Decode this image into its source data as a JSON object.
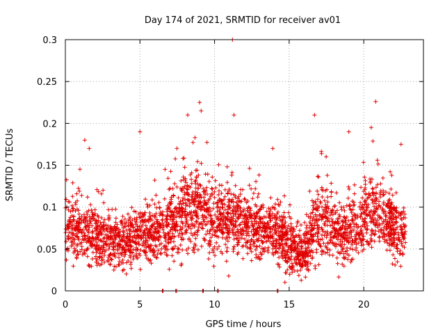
{
  "chart_data": {
    "type": "scatter",
    "title": "Day 174 of 2021, SRMTID for receiver av01",
    "xlabel": "GPS time / hours",
    "ylabel": "SRMTID / TECUs",
    "xlim": [
      0,
      24
    ],
    "ylim": [
      0,
      0.3
    ],
    "xticks": [
      0,
      5,
      10,
      15,
      20
    ],
    "xtick_labels": [
      "0",
      "5",
      "10",
      "15",
      "20"
    ],
    "yticks": [
      0,
      0.05,
      0.1,
      0.15,
      0.2,
      0.25,
      0.3
    ],
    "ytick_labels": [
      "0",
      "0.05",
      "0.1",
      "0.15",
      "0.2",
      "0.25",
      "0.3"
    ],
    "grid": true,
    "marker": "+",
    "color": "#e00000",
    "point_count_estimate": 3000,
    "envelope": [
      {
        "x": 0.0,
        "median": 0.075,
        "spread": 0.04
      },
      {
        "x": 1.0,
        "median": 0.07,
        "spread": 0.035
      },
      {
        "x": 2.0,
        "median": 0.065,
        "spread": 0.03
      },
      {
        "x": 3.0,
        "median": 0.06,
        "spread": 0.028
      },
      {
        "x": 4.0,
        "median": 0.06,
        "spread": 0.028
      },
      {
        "x": 5.0,
        "median": 0.065,
        "spread": 0.03
      },
      {
        "x": 6.0,
        "median": 0.07,
        "spread": 0.03
      },
      {
        "x": 7.0,
        "median": 0.075,
        "spread": 0.035
      },
      {
        "x": 8.0,
        "median": 0.095,
        "spread": 0.045
      },
      {
        "x": 9.0,
        "median": 0.1,
        "spread": 0.045
      },
      {
        "x": 10.0,
        "median": 0.085,
        "spread": 0.04
      },
      {
        "x": 11.0,
        "median": 0.085,
        "spread": 0.04
      },
      {
        "x": 12.0,
        "median": 0.08,
        "spread": 0.035
      },
      {
        "x": 13.0,
        "median": 0.07,
        "spread": 0.032
      },
      {
        "x": 14.0,
        "median": 0.07,
        "spread": 0.03
      },
      {
        "x": 15.0,
        "median": 0.055,
        "spread": 0.03
      },
      {
        "x": 16.0,
        "median": 0.045,
        "spread": 0.025
      },
      {
        "x": 17.0,
        "median": 0.085,
        "spread": 0.04
      },
      {
        "x": 18.0,
        "median": 0.07,
        "spread": 0.035
      },
      {
        "x": 19.0,
        "median": 0.07,
        "spread": 0.035
      },
      {
        "x": 20.0,
        "median": 0.085,
        "spread": 0.04
      },
      {
        "x": 21.0,
        "median": 0.095,
        "spread": 0.04
      },
      {
        "x": 22.0,
        "median": 0.075,
        "spread": 0.035
      },
      {
        "x": 22.8,
        "median": 0.07,
        "spread": 0.03
      }
    ],
    "outliers": [
      {
        "x": 1.3,
        "y": 0.18
      },
      {
        "x": 1.6,
        "y": 0.17
      },
      {
        "x": 5.0,
        "y": 0.19
      },
      {
        "x": 8.2,
        "y": 0.21
      },
      {
        "x": 9.0,
        "y": 0.225
      },
      {
        "x": 9.1,
        "y": 0.215
      },
      {
        "x": 11.2,
        "y": 0.3
      },
      {
        "x": 11.3,
        "y": 0.21
      },
      {
        "x": 13.9,
        "y": 0.17
      },
      {
        "x": 16.7,
        "y": 0.21
      },
      {
        "x": 19.0,
        "y": 0.19
      },
      {
        "x": 20.5,
        "y": 0.195
      },
      {
        "x": 20.8,
        "y": 0.226
      },
      {
        "x": 22.5,
        "y": 0.175
      }
    ],
    "zero_points_x": [
      6.5,
      7.4,
      9.2,
      10.2,
      14.2
    ]
  }
}
